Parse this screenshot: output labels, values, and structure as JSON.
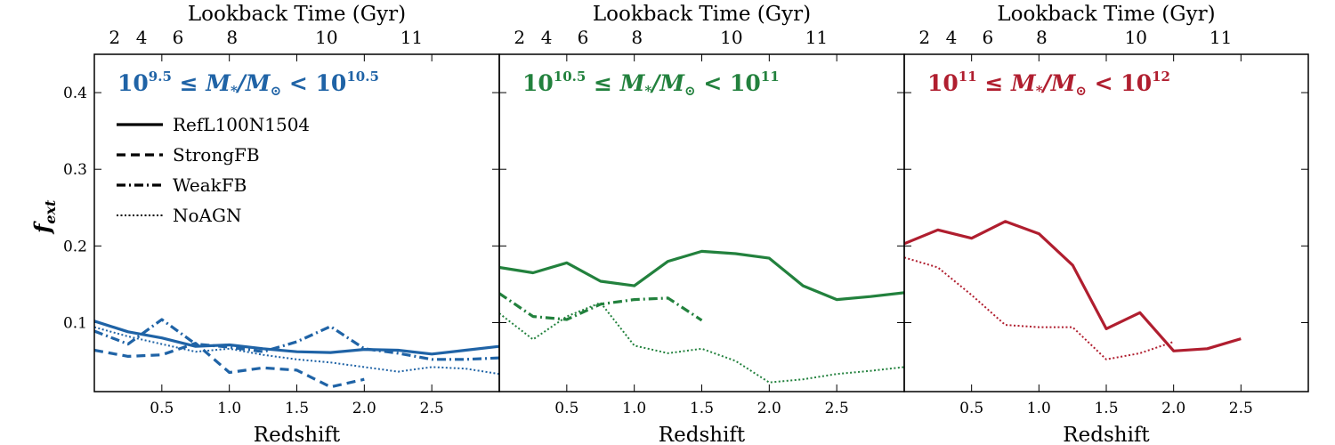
{
  "chart_data": {
    "type": "line",
    "ylabel": "f_ext",
    "xlabel": "Redshift",
    "top_xlabel": "Lookback Time (Gyr)",
    "xlim": [
      0,
      3
    ],
    "ylim": [
      0.01,
      0.45
    ],
    "x_ticks": [
      0.5,
      1.0,
      1.5,
      2.0,
      2.5
    ],
    "x_tick_labels": [
      "0.5",
      "1.0",
      "1.5",
      "2.0",
      "2.5"
    ],
    "y_ticks": [
      0.1,
      0.2,
      0.3,
      0.4
    ],
    "y_tick_labels": [
      "0.1",
      "0.2",
      "0.3",
      "0.4"
    ],
    "top_ticks": [
      {
        "label": "2",
        "z": 0.15
      },
      {
        "label": "4",
        "z": 0.35
      },
      {
        "label": "6",
        "z": 0.62
      },
      {
        "label": "8",
        "z": 1.02
      },
      {
        "label": "10",
        "z": 1.72
      },
      {
        "label": "11",
        "z": 2.35
      }
    ],
    "legend": {
      "location": "top-left",
      "entries": [
        {
          "name": "RefL100N1504",
          "style": "solid"
        },
        {
          "name": "StrongFB",
          "style": "dashed"
        },
        {
          "name": "WeakFB",
          "style": "dashdot"
        },
        {
          "name": "NoAGN",
          "style": "dotted"
        }
      ]
    },
    "panels": [
      {
        "title_text": "10^9.5 ≤ M*/M☉ < 10^10.5",
        "color": "#1f63a6",
        "series": [
          {
            "name": "RefL100N1504",
            "style": "solid",
            "x": [
              0.0,
              0.25,
              0.5,
              0.75,
              1.0,
              1.25,
              1.5,
              1.75,
              2.0,
              2.25,
              2.5,
              2.75,
              3.0
            ],
            "y": [
              0.102,
              0.088,
              0.08,
              0.069,
              0.071,
              0.066,
              0.062,
              0.061,
              0.065,
              0.064,
              0.059,
              0.064,
              0.069
            ]
          },
          {
            "name": "StrongFB",
            "style": "dashed",
            "x": [
              0.0,
              0.25,
              0.5,
              0.75,
              1.0,
              1.25,
              1.5,
              1.75,
              2.0
            ],
            "y": [
              0.064,
              0.056,
              0.058,
              0.073,
              0.035,
              0.041,
              0.038,
              0.016,
              0.026
            ]
          },
          {
            "name": "WeakFB",
            "style": "dashdot",
            "x": [
              0.0,
              0.25,
              0.5,
              0.75,
              1.0,
              1.25,
              1.5,
              1.75,
              2.0,
              2.25,
              2.5,
              2.75,
              3.0
            ],
            "y": [
              0.089,
              0.072,
              0.104,
              0.072,
              0.068,
              0.062,
              0.075,
              0.095,
              0.066,
              0.06,
              0.052,
              0.052,
              0.054
            ]
          },
          {
            "name": "NoAGN",
            "style": "dotted",
            "x": [
              0.0,
              0.25,
              0.5,
              0.75,
              1.0,
              1.25,
              1.5,
              1.75,
              2.0,
              2.25,
              2.5,
              2.75,
              3.0
            ],
            "y": [
              0.094,
              0.082,
              0.072,
              0.062,
              0.066,
              0.058,
              0.052,
              0.048,
              0.042,
              0.036,
              0.042,
              0.04,
              0.033
            ]
          }
        ]
      },
      {
        "title_text": "10^10.5 ≤ M*/M☉ < 10^11",
        "color": "#22813d",
        "series": [
          {
            "name": "RefL100N1504",
            "style": "solid",
            "x": [
              0.0,
              0.25,
              0.5,
              0.75,
              1.0,
              1.25,
              1.5,
              1.75,
              2.0,
              2.25,
              2.5,
              2.75,
              3.0
            ],
            "y": [
              0.172,
              0.165,
              0.178,
              0.154,
              0.148,
              0.18,
              0.193,
              0.19,
              0.184,
              0.148,
              0.13,
              0.134,
              0.139
            ]
          },
          {
            "name": "WeakFB",
            "style": "dashdot",
            "x": [
              0.0,
              0.25,
              0.5,
              0.75,
              1.0,
              1.25,
              1.5
            ],
            "y": [
              0.138,
              0.108,
              0.104,
              0.124,
              0.13,
              0.132,
              0.103
            ]
          },
          {
            "name": "NoAGN",
            "style": "dotted",
            "x": [
              0.0,
              0.25,
              0.5,
              0.75,
              1.0,
              1.25,
              1.5,
              1.75,
              2.0,
              2.25,
              2.5,
              2.75,
              3.0
            ],
            "y": [
              0.112,
              0.078,
              0.108,
              0.126,
              0.07,
              0.06,
              0.066,
              0.05,
              0.022,
              0.026,
              0.033,
              0.037,
              0.042
            ]
          }
        ]
      },
      {
        "title_text": "10^11 ≤ M*/M☉ < 10^12",
        "color": "#b01e2f",
        "series": [
          {
            "name": "RefL100N1504",
            "style": "solid",
            "x": [
              0.0,
              0.25,
              0.5,
              0.75,
              1.0,
              1.25,
              1.5,
              1.75,
              2.0,
              2.25,
              2.5
            ],
            "y": [
              0.203,
              0.221,
              0.21,
              0.232,
              0.216,
              0.175,
              0.092,
              0.113,
              0.063,
              0.066,
              0.079
            ]
          },
          {
            "name": "NoAGN",
            "style": "dotted",
            "x": [
              0.0,
              0.25,
              0.5,
              0.75,
              1.0,
              1.25,
              1.5,
              1.75,
              2.0
            ],
            "y": [
              0.185,
              0.172,
              0.136,
              0.097,
              0.094,
              0.094,
              0.052,
              0.06,
              0.075
            ]
          }
        ]
      }
    ]
  },
  "panel_titles": [
    {
      "base1": "10",
      "exp1": "9.5",
      "mid": " ≤ M",
      "sub": "*",
      "slash": "/M",
      "sun": "⊙",
      "lt": " < 10",
      "exp2": "10.5"
    },
    {
      "base1": "10",
      "exp1": "10.5",
      "mid": " ≤ M",
      "sub": "*",
      "slash": "/M",
      "sun": "⊙",
      "lt": " < 10",
      "exp2": "11"
    },
    {
      "base1": "10",
      "exp1": "11",
      "mid": " ≤ M",
      "sub": "*",
      "slash": "/M",
      "sun": "⊙",
      "lt": " < 10",
      "exp2": "12"
    }
  ],
  "ylabel_parts": {
    "main": "f",
    "sub": "ext"
  },
  "colors": {
    "panel1": "#1f63a6",
    "panel2": "#22813d",
    "panel3": "#b01e2f",
    "legend": "#000000"
  }
}
